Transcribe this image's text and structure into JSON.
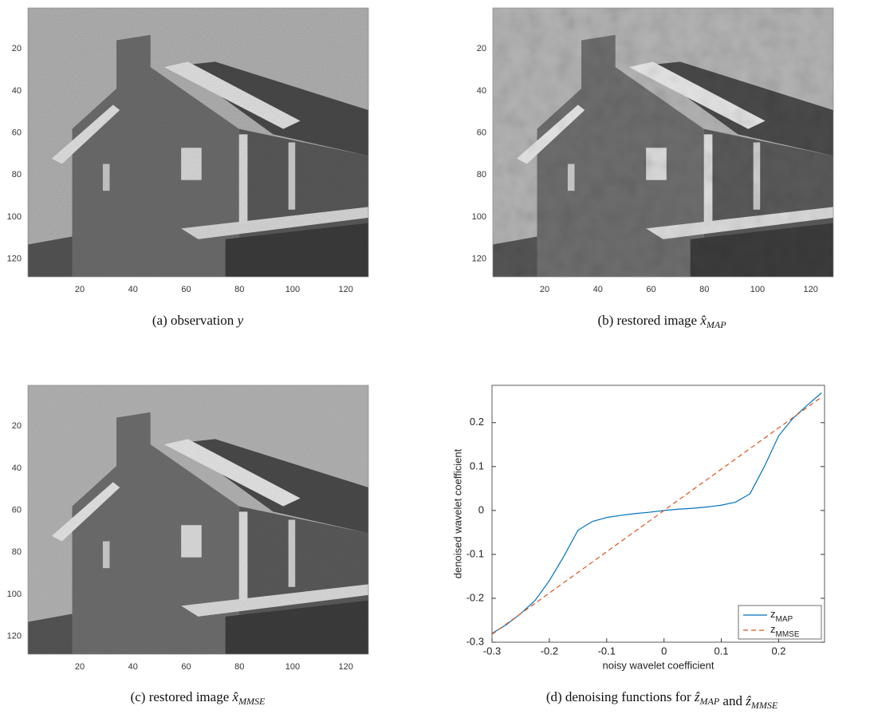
{
  "chart_data": [
    {
      "type": "image",
      "caption": [
        {
          "text": "(a) observation "
        },
        {
          "math": "y"
        }
      ],
      "xlim": [
        0.5,
        128.5
      ],
      "ylim": [
        128.5,
        0.5
      ],
      "xticks": [
        20,
        40,
        60,
        80,
        100,
        120
      ],
      "yticks": [
        20,
        40,
        60,
        80,
        100,
        120
      ]
    },
    {
      "type": "image",
      "caption": [
        {
          "text": "(b) restored image "
        },
        {
          "math": "x̂",
          "sub": "MAP"
        }
      ],
      "xlim": [
        0.5,
        128.5
      ],
      "ylim": [
        128.5,
        0.5
      ],
      "xticks": [
        20,
        40,
        60,
        80,
        100,
        120
      ],
      "yticks": [
        20,
        40,
        60,
        80,
        100,
        120
      ]
    },
    {
      "type": "image",
      "caption": [
        {
          "text": "(c) restored image "
        },
        {
          "math": "x̂",
          "sub": "MMSE"
        }
      ],
      "xlim": [
        0.5,
        128.5
      ],
      "ylim": [
        128.5,
        0.5
      ],
      "xticks": [
        20,
        40,
        60,
        80,
        100,
        120
      ],
      "yticks": [
        20,
        40,
        60,
        80,
        100,
        120
      ]
    },
    {
      "type": "line",
      "caption": [
        {
          "text": "(d) denoising functions for "
        },
        {
          "math": "ẑ",
          "sub": "MAP"
        },
        {
          "text": " and "
        },
        {
          "math": "ẑ",
          "sub": "MMSE"
        }
      ],
      "x_label": "noisy wavelet coefficient",
      "y_label": "denoised wavelet coefficient",
      "x": [
        -0.3,
        -0.275,
        -0.25,
        -0.225,
        -0.2,
        -0.175,
        -0.15,
        -0.125,
        -0.1,
        -0.075,
        -0.05,
        -0.025,
        0,
        0.025,
        0.05,
        0.075,
        0.1,
        0.125,
        0.15,
        0.175,
        0.2,
        0.225,
        0.25,
        0.275
      ],
      "series": [
        {
          "name": "z",
          "subscript": "MAP",
          "color": "#0072BD",
          "dash": false,
          "values": [
            -0.28,
            -0.26,
            -0.235,
            -0.205,
            -0.16,
            -0.105,
            -0.045,
            -0.025,
            -0.016,
            -0.011,
            -0.007,
            -0.004,
            0,
            0.003,
            0.005,
            0.008,
            0.012,
            0.019,
            0.038,
            0.1,
            0.17,
            0.21,
            0.24,
            0.268
          ]
        },
        {
          "name": "z",
          "subscript": "MMSE",
          "color": "#D95319",
          "dash": true,
          "values": [
            -0.282,
            -0.2585,
            -0.235,
            -0.2115,
            -0.188,
            -0.1645,
            -0.141,
            -0.1175,
            -0.094,
            -0.0705,
            -0.047,
            -0.0235,
            0,
            0.0235,
            0.047,
            0.0705,
            0.094,
            0.1175,
            0.141,
            0.1645,
            0.188,
            0.2115,
            0.235,
            0.2585
          ]
        }
      ],
      "xlim": [
        -0.3,
        0.28
      ],
      "ylim": [
        -0.3,
        0.285
      ],
      "xticks": [
        -0.3,
        -0.2,
        -0.1,
        0,
        0.1,
        0.2
      ],
      "yticks": [
        -0.3,
        -0.2,
        -0.1,
        0,
        0.1,
        0.2
      ],
      "legend": "lower right"
    }
  ]
}
